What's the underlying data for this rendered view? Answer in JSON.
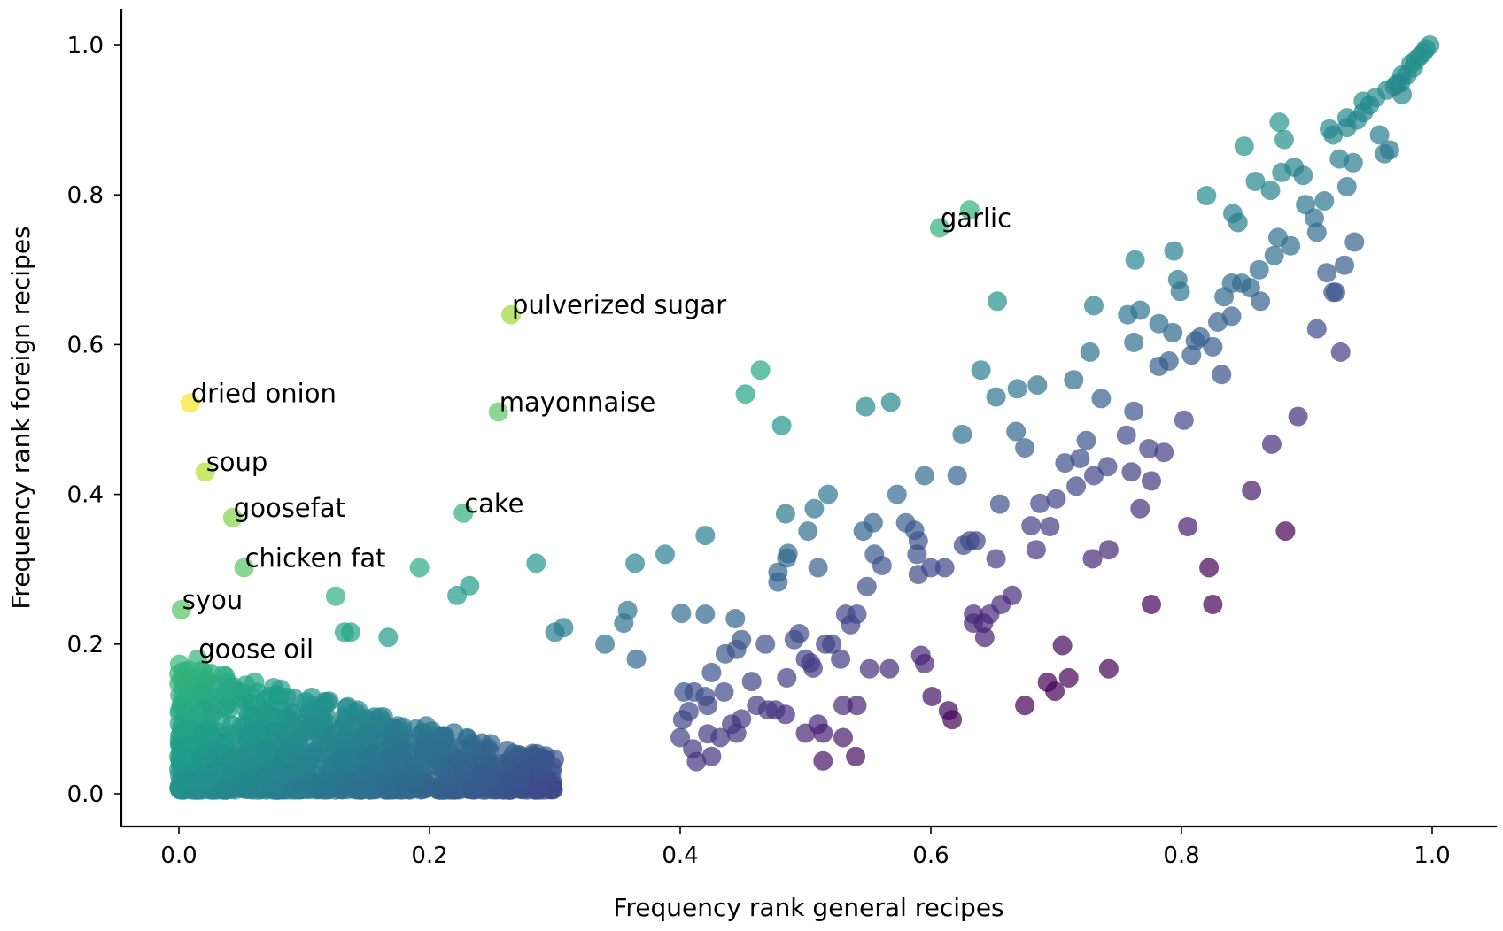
{
  "chart_data": {
    "type": "scatter",
    "title": "",
    "xlabel": "Frequency rank general recipes",
    "ylabel": "Frequency rank foreign recipes",
    "xlim": [
      -0.045,
      1.05
    ],
    "ylim": [
      -0.043,
      1.05
    ],
    "xticks": [
      0.0,
      0.2,
      0.4,
      0.6,
      0.8,
      1.0
    ],
    "xtick_labels": [
      "0.0",
      "0.2",
      "0.4",
      "0.6",
      "0.8",
      "1.0"
    ],
    "yticks": [
      0.0,
      0.2,
      0.4,
      0.6,
      0.8,
      1.0
    ],
    "ytick_labels": [
      "0.0",
      "0.2",
      "0.4",
      "0.6",
      "0.8",
      "1.0"
    ],
    "grid": false,
    "colormap": "viridis",
    "color_encodes": "foreign rank minus general rank",
    "marker_alpha": 0.7,
    "annotations": [
      {
        "label": "garlic",
        "x": 0.607,
        "y": 0.756
      },
      {
        "label": "pulverized sugar",
        "x": 0.265,
        "y": 0.64
      },
      {
        "label": "mayonnaise",
        "x": 0.255,
        "y": 0.51
      },
      {
        "label": "dried onion",
        "x": 0.009,
        "y": 0.522
      },
      {
        "label": "soup",
        "x": 0.021,
        "y": 0.43
      },
      {
        "label": "goosefat",
        "x": 0.043,
        "y": 0.369
      },
      {
        "label": "cake",
        "x": 0.227,
        "y": 0.375
      },
      {
        "label": "chicken fat",
        "x": 0.052,
        "y": 0.302
      },
      {
        "label": "syou",
        "x": 0.002,
        "y": 0.246
      },
      {
        "label": "goose oil",
        "x": 0.015,
        "y": 0.18
      }
    ],
    "points": [
      [
        0.631,
        0.78
      ],
      [
        0.607,
        0.756
      ],
      [
        0.265,
        0.64
      ],
      [
        0.255,
        0.51
      ],
      [
        0.009,
        0.522
      ],
      [
        0.021,
        0.43
      ],
      [
        0.043,
        0.369
      ],
      [
        0.227,
        0.375
      ],
      [
        0.052,
        0.302
      ],
      [
        0.002,
        0.246
      ],
      [
        0.015,
        0.18
      ],
      [
        0.464,
        0.566
      ],
      [
        0.452,
        0.534
      ],
      [
        0.481,
        0.492
      ],
      [
        0.548,
        0.517
      ],
      [
        0.568,
        0.523
      ],
      [
        0.653,
        0.658
      ],
      [
        0.64,
        0.566
      ],
      [
        0.652,
        0.53
      ],
      [
        0.625,
        0.48
      ],
      [
        0.192,
        0.302
      ],
      [
        0.222,
        0.265
      ],
      [
        0.232,
        0.278
      ],
      [
        0.285,
        0.308
      ],
      [
        0.125,
        0.264
      ],
      [
        0.167,
        0.209
      ],
      [
        0.132,
        0.216
      ],
      [
        0.137,
        0.216
      ],
      [
        0.364,
        0.308
      ],
      [
        0.388,
        0.32
      ],
      [
        0.42,
        0.345
      ],
      [
        0.358,
        0.245
      ],
      [
        0.355,
        0.228
      ],
      [
        0.3,
        0.216
      ],
      [
        0.307,
        0.222
      ],
      [
        0.365,
        0.18
      ],
      [
        0.34,
        0.2
      ],
      [
        0.401,
        0.241
      ],
      [
        0.42,
        0.24
      ],
      [
        0.444,
        0.234
      ],
      [
        0.484,
        0.374
      ],
      [
        0.486,
        0.321
      ],
      [
        0.478,
        0.296
      ],
      [
        0.478,
        0.283
      ],
      [
        0.485,
        0.315
      ],
      [
        0.502,
        0.351
      ],
      [
        0.507,
        0.381
      ],
      [
        0.518,
        0.4
      ],
      [
        0.51,
        0.302
      ],
      [
        0.546,
        0.351
      ],
      [
        0.554,
        0.362
      ],
      [
        0.573,
        0.4
      ],
      [
        0.595,
        0.425
      ],
      [
        0.621,
        0.425
      ],
      [
        0.58,
        0.362
      ],
      [
        0.587,
        0.352
      ],
      [
        0.59,
        0.338
      ],
      [
        0.555,
        0.32
      ],
      [
        0.561,
        0.305
      ],
      [
        0.549,
        0.277
      ],
      [
        0.589,
        0.32
      ],
      [
        0.59,
        0.293
      ],
      [
        0.6,
        0.302
      ],
      [
        0.611,
        0.302
      ],
      [
        0.626,
        0.332
      ],
      [
        0.631,
        0.338
      ],
      [
        0.636,
        0.338
      ],
      [
        0.655,
        0.387
      ],
      [
        0.668,
        0.484
      ],
      [
        0.675,
        0.462
      ],
      [
        0.669,
        0.541
      ],
      [
        0.685,
        0.546
      ],
      [
        0.714,
        0.553
      ],
      [
        0.707,
        0.442
      ],
      [
        0.719,
        0.448
      ],
      [
        0.724,
        0.472
      ],
      [
        0.7,
        0.394
      ],
      [
        0.687,
        0.388
      ],
      [
        0.695,
        0.357
      ],
      [
        0.68,
        0.358
      ],
      [
        0.684,
        0.326
      ],
      [
        0.652,
        0.314
      ],
      [
        0.665,
        0.265
      ],
      [
        0.656,
        0.253
      ],
      [
        0.634,
        0.24
      ],
      [
        0.647,
        0.24
      ],
      [
        0.634,
        0.228
      ],
      [
        0.642,
        0.228
      ],
      [
        0.643,
        0.209
      ],
      [
        0.727,
        0.59
      ],
      [
        0.73,
        0.652
      ],
      [
        0.736,
        0.528
      ],
      [
        0.716,
        0.411
      ],
      [
        0.73,
        0.425
      ],
      [
        0.741,
        0.437
      ],
      [
        0.756,
        0.479
      ],
      [
        0.76,
        0.43
      ],
      [
        0.762,
        0.511
      ],
      [
        0.767,
        0.381
      ],
      [
        0.776,
        0.418
      ],
      [
        0.774,
        0.461
      ],
      [
        0.786,
        0.456
      ],
      [
        0.729,
        0.314
      ],
      [
        0.742,
        0.326
      ],
      [
        0.762,
        0.603
      ],
      [
        0.757,
        0.64
      ],
      [
        0.767,
        0.646
      ],
      [
        0.763,
        0.713
      ],
      [
        0.79,
        0.578
      ],
      [
        0.782,
        0.571
      ],
      [
        0.802,
        0.499
      ],
      [
        0.793,
        0.616
      ],
      [
        0.782,
        0.628
      ],
      [
        0.794,
        0.725
      ],
      [
        0.797,
        0.687
      ],
      [
        0.799,
        0.671
      ],
      [
        0.808,
        0.586
      ],
      [
        0.811,
        0.605
      ],
      [
        0.815,
        0.61
      ],
      [
        0.825,
        0.597
      ],
      [
        0.829,
        0.63
      ],
      [
        0.84,
        0.638
      ],
      [
        0.834,
        0.664
      ],
      [
        0.84,
        0.682
      ],
      [
        0.848,
        0.682
      ],
      [
        0.855,
        0.676
      ],
      [
        0.863,
        0.658
      ],
      [
        0.862,
        0.7
      ],
      [
        0.874,
        0.719
      ],
      [
        0.877,
        0.743
      ],
      [
        0.887,
        0.732
      ],
      [
        0.88,
        0.83
      ],
      [
        0.89,
        0.837
      ],
      [
        0.897,
        0.826
      ],
      [
        0.899,
        0.787
      ],
      [
        0.906,
        0.769
      ],
      [
        0.908,
        0.75
      ],
      [
        0.914,
        0.792
      ],
      [
        0.916,
        0.696
      ],
      [
        0.923,
        0.67
      ],
      [
        0.921,
        0.67
      ],
      [
        0.93,
        0.706
      ],
      [
        0.908,
        0.621
      ],
      [
        0.927,
        0.59
      ],
      [
        0.938,
        0.737
      ],
      [
        0.932,
        0.811
      ],
      [
        0.937,
        0.843
      ],
      [
        0.926,
        0.848
      ],
      [
        0.85,
        0.865
      ],
      [
        0.878,
        0.897
      ],
      [
        0.882,
        0.874
      ],
      [
        0.859,
        0.818
      ],
      [
        0.841,
        0.775
      ],
      [
        0.845,
        0.763
      ],
      [
        0.871,
        0.806
      ],
      [
        0.82,
        0.799
      ],
      [
        0.832,
        0.56
      ],
      [
        0.805,
        0.357
      ],
      [
        0.822,
        0.302
      ],
      [
        0.776,
        0.253
      ],
      [
        0.825,
        0.253
      ],
      [
        0.856,
        0.405
      ],
      [
        0.872,
        0.467
      ],
      [
        0.893,
        0.504
      ],
      [
        0.883,
        0.351
      ],
      [
        0.742,
        0.167
      ],
      [
        0.693,
        0.149
      ],
      [
        0.699,
        0.137
      ],
      [
        0.71,
        0.155
      ],
      [
        0.705,
        0.198
      ],
      [
        0.675,
        0.118
      ],
      [
        0.614,
        0.111
      ],
      [
        0.617,
        0.099
      ],
      [
        0.601,
        0.13
      ],
      [
        0.592,
        0.185
      ],
      [
        0.595,
        0.174
      ],
      [
        0.551,
        0.167
      ],
      [
        0.567,
        0.167
      ],
      [
        0.53,
        0.118
      ],
      [
        0.541,
        0.118
      ],
      [
        0.51,
        0.093
      ],
      [
        0.514,
        0.081
      ],
      [
        0.5,
        0.081
      ],
      [
        0.514,
        0.044
      ],
      [
        0.53,
        0.075
      ],
      [
        0.54,
        0.05
      ],
      [
        0.506,
        0.168
      ],
      [
        0.516,
        0.2
      ],
      [
        0.521,
        0.2
      ],
      [
        0.528,
        0.18
      ],
      [
        0.532,
        0.24
      ],
      [
        0.541,
        0.24
      ],
      [
        0.536,
        0.226
      ],
      [
        0.495,
        0.214
      ],
      [
        0.491,
        0.206
      ],
      [
        0.468,
        0.2
      ],
      [
        0.5,
        0.18
      ],
      [
        0.504,
        0.175
      ],
      [
        0.485,
        0.155
      ],
      [
        0.457,
        0.15
      ],
      [
        0.476,
        0.112
      ],
      [
        0.484,
        0.106
      ],
      [
        0.47,
        0.112
      ],
      [
        0.461,
        0.118
      ],
      [
        0.449,
        0.1
      ],
      [
        0.441,
        0.093
      ],
      [
        0.445,
        0.081
      ],
      [
        0.449,
        0.206
      ],
      [
        0.436,
        0.187
      ],
      [
        0.445,
        0.193
      ],
      [
        0.425,
        0.162
      ],
      [
        0.435,
        0.136
      ],
      [
        0.42,
        0.13
      ],
      [
        0.422,
        0.118
      ],
      [
        0.411,
        0.136
      ],
      [
        0.403,
        0.136
      ],
      [
        0.407,
        0.11
      ],
      [
        0.402,
        0.099
      ],
      [
        0.4,
        0.075
      ],
      [
        0.41,
        0.06
      ],
      [
        0.413,
        0.043
      ],
      [
        0.425,
        0.05
      ],
      [
        0.432,
        0.075
      ],
      [
        0.422,
        0.08
      ],
      [
        0.976,
        0.96
      ],
      [
        0.987,
        0.98
      ],
      [
        0.998,
        1.0
      ],
      [
        0.993,
        0.99
      ],
      [
        0.985,
        0.97
      ],
      [
        0.98,
        0.96
      ],
      [
        0.975,
        0.95
      ],
      [
        0.97,
        0.945
      ],
      [
        0.964,
        0.94
      ],
      [
        0.976,
        0.934
      ],
      [
        0.955,
        0.93
      ],
      [
        0.945,
        0.925
      ],
      [
        0.945,
        0.91
      ],
      [
        0.94,
        0.9
      ],
      [
        0.932,
        0.903
      ],
      [
        0.932,
        0.89
      ],
      [
        0.918,
        0.888
      ],
      [
        0.921,
        0.88
      ],
      [
        0.958,
        0.88
      ],
      [
        0.966,
        0.86
      ],
      [
        0.962,
        0.855
      ],
      [
        0.95,
        0.92
      ],
      [
        0.99,
        0.985
      ],
      [
        0.995,
        0.995
      ],
      [
        0.983,
        0.975
      ],
      [
        0.972,
        0.948
      ]
    ],
    "cluster": {
      "description": "dense cluster of low-rank ingredients",
      "x_range": [
        0.0,
        0.3
      ],
      "y_range": [
        0.0,
        0.2
      ],
      "count": 1100
    }
  }
}
